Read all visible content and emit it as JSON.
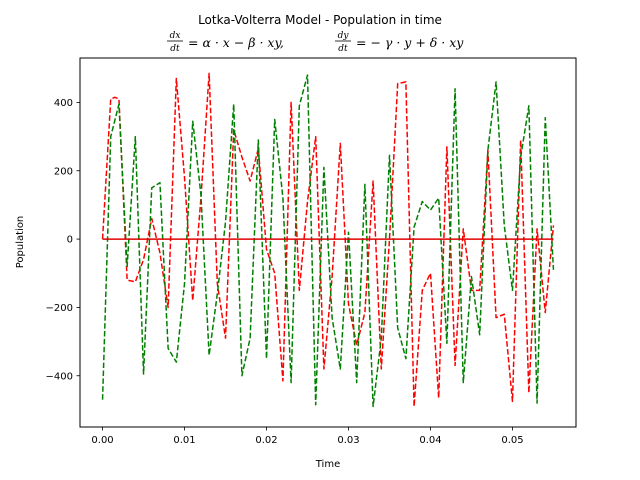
{
  "chart_data": {
    "type": "line",
    "title": "Lotka-Volterra Model - Population in time",
    "equation_left_num": "dx",
    "equation_left_den": "dt",
    "equation_left_rhs": "= α · x − β · xy,",
    "equation_right_num": "dy",
    "equation_right_den": "dt",
    "equation_right_rhs": "= − γ · y + δ · xy",
    "xlabel": "Time",
    "ylabel": "Population",
    "xlim": [
      -0.00275,
      0.05775
    ],
    "ylim": [
      -550,
      530
    ],
    "xticks": [
      0.0,
      0.01,
      0.02,
      0.03,
      0.04,
      0.05
    ],
    "xtick_labels": [
      "0.00",
      "0.01",
      "0.02",
      "0.03",
      "0.04",
      "0.05"
    ],
    "yticks": [
      -400,
      -200,
      0,
      200,
      400
    ],
    "ytick_labels": [
      "−400",
      "−200",
      "0",
      "200",
      "400"
    ],
    "grid": false,
    "series": [
      {
        "color": "#ff0000",
        "style": "dashed",
        "x": [
          0.0,
          0.001,
          0.0015,
          0.002,
          0.003,
          0.004,
          0.005,
          0.006,
          0.007,
          0.008,
          0.009,
          0.01,
          0.011,
          0.012,
          0.013,
          0.014,
          0.015,
          0.016,
          0.017,
          0.018,
          0.019,
          0.02,
          0.021,
          0.022,
          0.023,
          0.024,
          0.025,
          0.026,
          0.027,
          0.028,
          0.029,
          0.03,
          0.031,
          0.032,
          0.033,
          0.034,
          0.035,
          0.036,
          0.037,
          0.038,
          0.039,
          0.04,
          0.041,
          0.042,
          0.043,
          0.044,
          0.045,
          0.046,
          0.047,
          0.048,
          0.049,
          0.05,
          0.051,
          0.052,
          0.053,
          0.054,
          0.055
        ],
        "y": [
          0,
          410,
          415,
          410,
          -120,
          -125,
          -60,
          60,
          -40,
          -200,
          470,
          180,
          -180,
          120,
          485,
          -130,
          -290,
          320,
          240,
          170,
          265,
          -30,
          -100,
          -415,
          400,
          -150,
          110,
          300,
          -380,
          -110,
          280,
          -190,
          -310,
          -215,
          170,
          -380,
          0,
          455,
          460,
          -490,
          -150,
          -100,
          -465,
          270,
          -370,
          30,
          -150,
          -150,
          260,
          -230,
          -220,
          -475,
          290,
          -450,
          30,
          -215,
          40
        ]
      },
      {
        "color": "#008000",
        "style": "dashed",
        "x": [
          0.0,
          0.001,
          0.002,
          0.003,
          0.004,
          0.005,
          0.006,
          0.007,
          0.008,
          0.009,
          0.01,
          0.011,
          0.012,
          0.013,
          0.014,
          0.015,
          0.016,
          0.017,
          0.018,
          0.019,
          0.02,
          0.021,
          0.022,
          0.023,
          0.024,
          0.025,
          0.026,
          0.027,
          0.028,
          0.029,
          0.03,
          0.031,
          0.032,
          0.033,
          0.034,
          0.035,
          0.036,
          0.037,
          0.038,
          0.039,
          0.04,
          0.041,
          0.042,
          0.043,
          0.044,
          0.045,
          0.046,
          0.047,
          0.048,
          0.049,
          0.05,
          0.051,
          0.052,
          0.053,
          0.054,
          0.055
        ],
        "y": [
          -470,
          300,
          395,
          -80,
          300,
          -395,
          150,
          165,
          -320,
          -360,
          -130,
          345,
          130,
          -340,
          -160,
          50,
          395,
          -400,
          -290,
          290,
          -350,
          350,
          120,
          -420,
          390,
          480,
          -485,
          210,
          -230,
          -380,
          20,
          -420,
          160,
          -490,
          -290,
          245,
          -260,
          -350,
          35,
          110,
          85,
          120,
          -305,
          440,
          -420,
          -110,
          -280,
          260,
          460,
          40,
          -150,
          240,
          390,
          -480,
          355,
          -90
        ]
      },
      {
        "color": "#e00000",
        "style": "solid",
        "x": [
          0.0,
          0.055
        ],
        "y": [
          0,
          0
        ]
      }
    ]
  }
}
